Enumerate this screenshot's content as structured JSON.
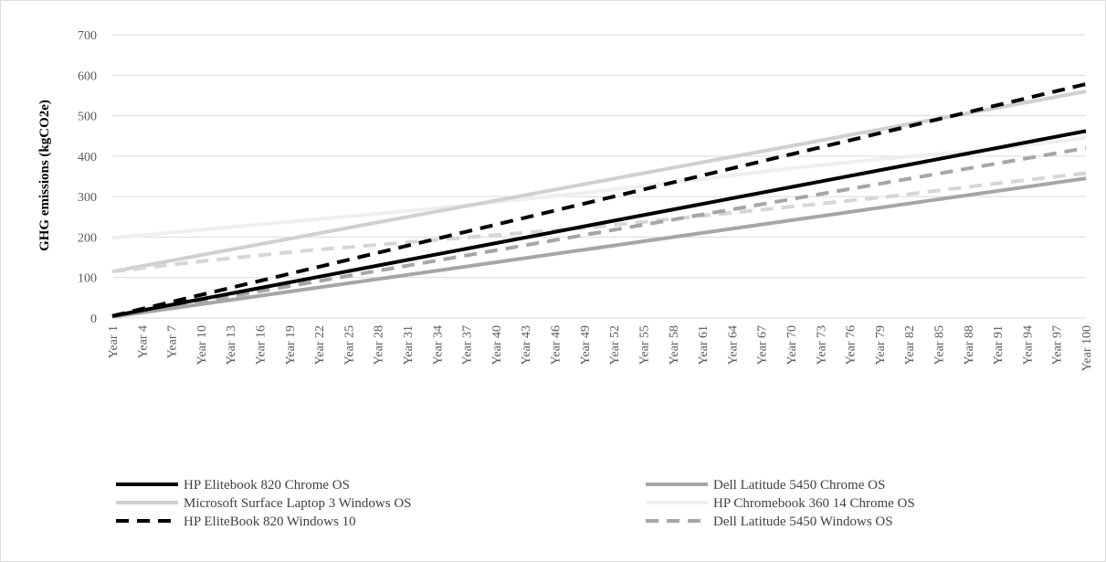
{
  "chart_data": {
    "type": "line",
    "title": "",
    "xlabel": "",
    "ylabel": "GHG emissions (kgCO2e)",
    "ylim": [
      0,
      700
    ],
    "yticks": [
      0,
      100,
      200,
      300,
      400,
      500,
      600,
      700
    ],
    "grid": "horizontal",
    "legend_position": "bottom",
    "x_range": [
      1,
      100
    ],
    "x_tick_labels": [
      "Year 1",
      "Year 4",
      "Year 7",
      "Year 10",
      "Year 13",
      "Year 16",
      "Year 19",
      "Year 22",
      "Year 25",
      "Year 28",
      "Year 31",
      "Year 34",
      "Year 37",
      "Year 40",
      "Year 43",
      "Year 46",
      "Year 49",
      "Year 52",
      "Year 55",
      "Year 58",
      "Year 61",
      "Year 64",
      "Year 67",
      "Year 70",
      "Year 73",
      "Year 76",
      "Year 79",
      "Year 82",
      "Year 85",
      "Year 88",
      "Year 91",
      "Year 94",
      "Year 97",
      "Year 100"
    ],
    "series": [
      {
        "name": "HP Elitebook 820 Chrome OS",
        "color": "#000000",
        "dash": "solid",
        "x": [
          1,
          100
        ],
        "y": [
          5,
          462
        ]
      },
      {
        "name": "Dell Latitude 5450 Chrome OS",
        "color": "#a6a6a6",
        "dash": "solid",
        "x": [
          1,
          100
        ],
        "y": [
          3,
          345
        ]
      },
      {
        "name": "Microsoft Surface Laptop 3 Windows OS",
        "color": "#d0d0d0",
        "dash": "solid",
        "x": [
          1,
          100
        ],
        "y": [
          115,
          560
        ]
      },
      {
        "name": "HP Chromebook 360 14 Chrome OS",
        "color": "#efefef",
        "dash": "solid",
        "x": [
          1,
          10,
          20,
          30,
          40,
          50,
          60,
          70,
          80,
          90,
          100
        ],
        "y": [
          198,
          218,
          240,
          262,
          286,
          312,
          340,
          370,
          395,
          415,
          445
        ]
      },
      {
        "name": "HP EliteBook 820 Windows 10",
        "color": "#000000",
        "dash": "dashed",
        "x": [
          1,
          100
        ],
        "y": [
          5,
          578
        ]
      },
      {
        "name": "Dell Latitude 5450 Windows OS",
        "color": "#a6a6a6",
        "dash": "dashed",
        "x": [
          1,
          100
        ],
        "y": [
          3,
          420
        ]
      },
      {
        "name": "",
        "color": "#d6d6d6",
        "dash": "dashed",
        "x": [
          1,
          10,
          20,
          30,
          40,
          50,
          60,
          70,
          80,
          90,
          100
        ],
        "y": [
          115,
          140,
          165,
          185,
          205,
          225,
          250,
          275,
          300,
          330,
          358
        ]
      }
    ]
  }
}
